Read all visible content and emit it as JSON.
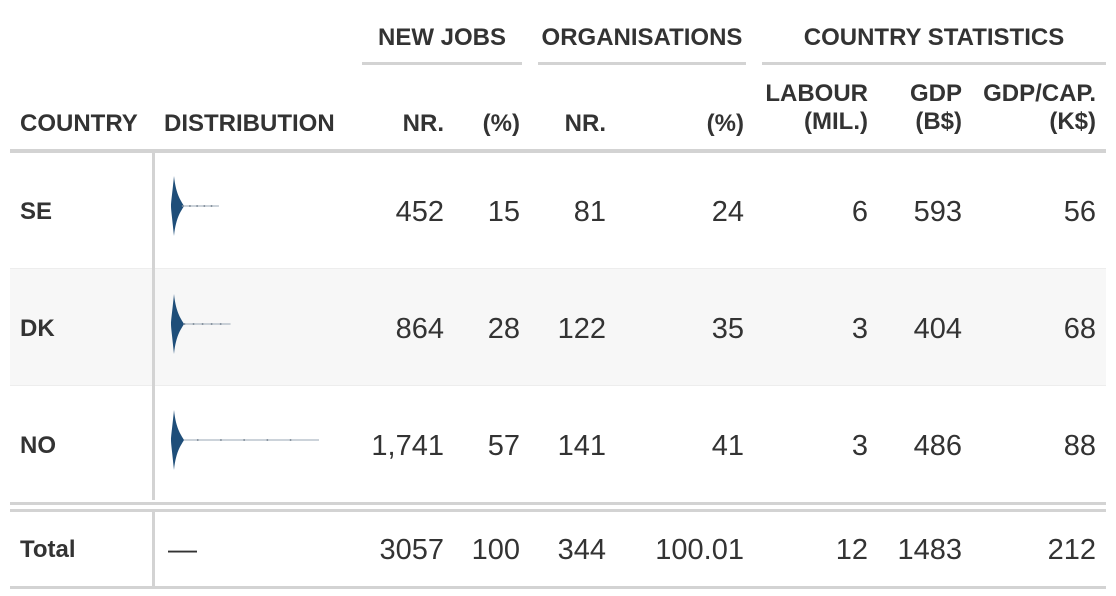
{
  "spanners": {
    "new_jobs": "NEW JOBS",
    "organisations": "ORGANISATIONS",
    "country_statistics": "COUNTRY STATISTICS"
  },
  "columns": {
    "country": "COUNTRY",
    "distribution": "DISTRIBUTION",
    "jobs_nr": "NR.",
    "jobs_pct": "(%)",
    "orgs_nr": "NR.",
    "orgs_pct": "(%)",
    "labour_line1": "LABOUR",
    "labour_line2": "(MIL.)",
    "gdp_line1": "GDP",
    "gdp_line2": "(B$)",
    "gdpcap_line1": "GDP/CAP.",
    "gdpcap_line2": "(K$)"
  },
  "rows": [
    {
      "country": "SE",
      "jobs_nr": "452",
      "jobs_pct": "15",
      "orgs_nr": "81",
      "orgs_pct": "24",
      "labour": "6",
      "gdp": "593",
      "gdpcap": "56",
      "dist_extent": 0.31
    },
    {
      "country": "DK",
      "jobs_nr": "864",
      "jobs_pct": "28",
      "orgs_nr": "122",
      "orgs_pct": "35",
      "labour": "3",
      "gdp": "404",
      "gdpcap": "68",
      "dist_extent": 0.39
    },
    {
      "country": "NO",
      "jobs_nr": "1,741",
      "jobs_pct": "57",
      "orgs_nr": "141",
      "orgs_pct": "41",
      "labour": "3",
      "gdp": "486",
      "gdpcap": "88",
      "dist_extent": 1.0
    }
  ],
  "summary": {
    "label": "Total",
    "distribution": "—",
    "jobs_nr": "3057",
    "jobs_pct": "100",
    "orgs_nr": "344",
    "orgs_pct": "100.01",
    "labour": "12",
    "gdp": "1483",
    "gdpcap": "212"
  },
  "colors": {
    "violin": "#1f4e79",
    "rule": "#d3d3d3",
    "stripe": "#f7f7f7"
  }
}
